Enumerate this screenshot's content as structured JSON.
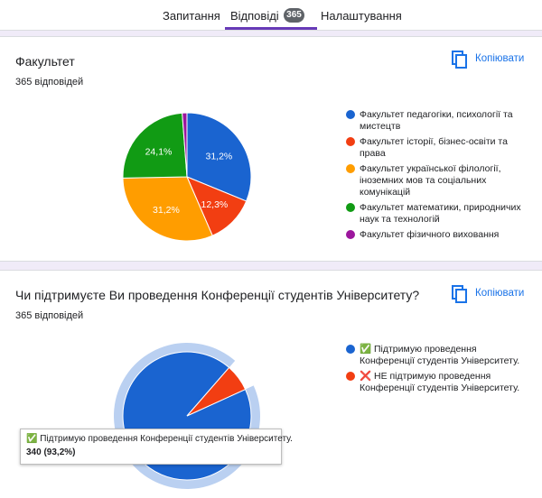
{
  "tabs": [
    {
      "label": "Запитання"
    },
    {
      "label": "Відповіді",
      "count": "365"
    },
    {
      "label": "Налаштування"
    }
  ],
  "copy_label": "Копіювати",
  "questions": [
    {
      "title": "Факультет",
      "responses": "365 відповідей",
      "chart_data": {
        "type": "pie",
        "series": [
          {
            "name": "Факультет педагогіки, психології та мистецтв",
            "value": 31.2,
            "label": "31,2%",
            "color": "#1a64d0"
          },
          {
            "name": "Факультет історії, бізнес-освіти та права",
            "value": 12.3,
            "label": "12,3%",
            "color": "#f23e12"
          },
          {
            "name": "Факультет української філології, іноземних мов та соціальних комунікацій",
            "value": 31.2,
            "label": "31,2%",
            "color": "#ff9d00"
          },
          {
            "name": "Факультет математики, природничих наук та технологій",
            "value": 24.1,
            "label": "24,1%",
            "color": "#119b14"
          },
          {
            "name": "Факультет фізичного виховання",
            "value": 1.2,
            "label": "",
            "color": "#9c169d"
          }
        ],
        "legend_lines": [
          [
            "Факультет педагогіки, психології та",
            "мистецтв"
          ],
          [
            "Факультет історії, бізнес-освіти та",
            "права"
          ],
          [
            "Факультет української філології,",
            "іноземних мов та соціальних",
            "комунікацій"
          ],
          [
            "Факультет математики, природничих",
            "наук та технологій"
          ],
          [
            "Факультет фізичного виховання"
          ]
        ]
      }
    },
    {
      "title": "Чи підтримуєте Ви проведення Конференції студентів Університету?",
      "responses": "365 відповідей",
      "chart_data": {
        "type": "pie",
        "series": [
          {
            "name": "✅ Підтримую проведення Конференції студентів Університету.",
            "value": 93.2,
            "label": "93,2%",
            "color": "#1a64d0"
          },
          {
            "name": "❌ НЕ підтримую проведення Конференції студентів Університету.",
            "value": 6.8,
            "label": "",
            "color": "#f23e12"
          }
        ],
        "legend_lines": [
          [
            "✅ Підтримую проведення",
            "Конференції студентів Університету."
          ],
          [
            "❌ НЕ підтримую проведення",
            "Конференції студентів Університету."
          ]
        ],
        "highlighted": 0
      },
      "tooltip": {
        "line1": "✅ Підтримую проведення Конференції студентів Університету.",
        "line2": "340 (93,2%)"
      }
    }
  ]
}
